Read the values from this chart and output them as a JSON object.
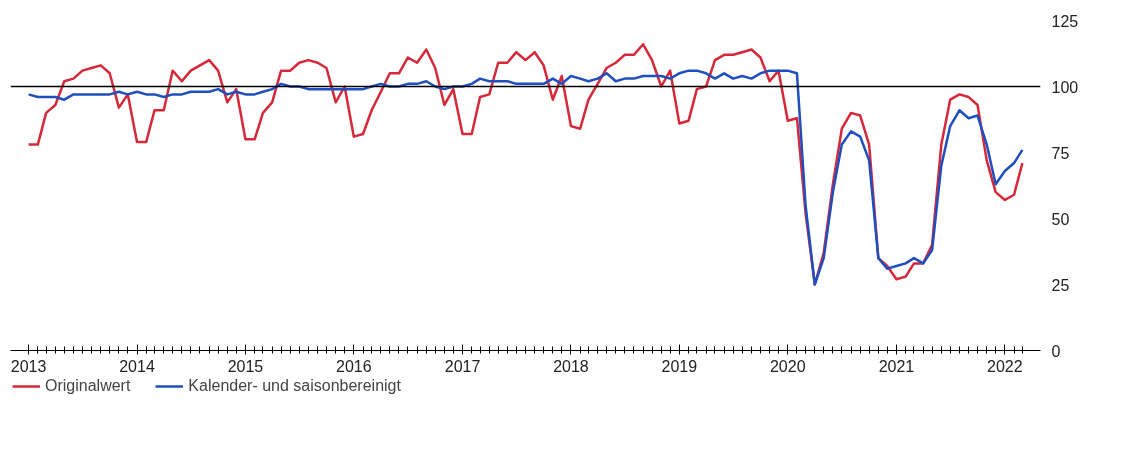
{
  "chart_data": {
    "type": "line",
    "x": [
      "2013-01",
      "2013-02",
      "2013-03",
      "2013-04",
      "2013-05",
      "2013-06",
      "2013-07",
      "2013-08",
      "2013-09",
      "2013-10",
      "2013-11",
      "2013-12",
      "2014-01",
      "2014-02",
      "2014-03",
      "2014-04",
      "2014-05",
      "2014-06",
      "2014-07",
      "2014-08",
      "2014-09",
      "2014-10",
      "2014-11",
      "2014-12",
      "2015-01",
      "2015-02",
      "2015-03",
      "2015-04",
      "2015-05",
      "2015-06",
      "2015-07",
      "2015-08",
      "2015-09",
      "2015-10",
      "2015-11",
      "2015-12",
      "2016-01",
      "2016-02",
      "2016-03",
      "2016-04",
      "2016-05",
      "2016-06",
      "2016-07",
      "2016-08",
      "2016-09",
      "2016-10",
      "2016-11",
      "2016-12",
      "2017-01",
      "2017-02",
      "2017-03",
      "2017-04",
      "2017-05",
      "2017-06",
      "2017-07",
      "2017-08",
      "2017-09",
      "2017-10",
      "2017-11",
      "2017-12",
      "2018-01",
      "2018-02",
      "2018-03",
      "2018-04",
      "2018-05",
      "2018-06",
      "2018-07",
      "2018-08",
      "2018-09",
      "2018-10",
      "2018-11",
      "2018-12",
      "2019-01",
      "2019-02",
      "2019-03",
      "2019-04",
      "2019-05",
      "2019-06",
      "2019-07",
      "2019-08",
      "2019-09",
      "2019-10",
      "2019-11",
      "2019-12",
      "2020-01",
      "2020-02",
      "2020-03",
      "2020-04",
      "2020-05",
      "2020-06",
      "2020-07",
      "2020-08",
      "2020-09",
      "2020-10",
      "2020-11",
      "2020-12",
      "2021-01",
      "2021-02",
      "2021-03",
      "2021-04",
      "2021-05",
      "2021-06",
      "2021-07",
      "2021-08",
      "2021-09",
      "2021-10",
      "2021-11",
      "2021-12",
      "2022-01",
      "2022-02",
      "2022-03"
    ],
    "series": [
      {
        "name": "Originalwert",
        "color": "#d62839",
        "values": [
          78,
          78,
          90,
          93,
          102,
          103,
          106,
          107,
          108,
          105,
          92,
          97,
          79,
          79,
          91,
          91,
          106,
          102,
          106,
          108,
          110,
          106,
          94,
          99,
          80,
          80,
          90,
          94,
          106,
          106,
          109,
          110,
          109,
          107,
          94,
          100,
          81,
          82,
          91,
          98,
          105,
          105,
          111,
          109,
          114,
          107,
          93,
          99,
          82,
          82,
          96,
          97,
          109,
          109,
          113,
          110,
          113,
          108,
          95,
          104,
          85,
          84,
          95,
          101,
          107,
          109,
          112,
          112,
          116,
          110,
          100,
          106,
          86,
          87,
          99,
          100,
          110,
          112,
          112,
          113,
          114,
          111,
          102,
          106,
          87,
          88,
          52,
          25,
          37,
          63,
          84,
          90,
          89,
          78,
          35,
          32,
          27,
          28,
          33,
          33,
          40,
          78,
          95,
          97,
          96,
          93,
          72,
          60,
          57,
          59,
          71
        ]
      },
      {
        "name": "Kalender- und saisonbereinigt",
        "color": "#1f4fbf",
        "values": [
          97,
          96,
          96,
          96,
          95,
          97,
          97,
          97,
          97,
          97,
          98,
          97,
          98,
          97,
          97,
          96,
          97,
          97,
          98,
          98,
          98,
          99,
          97,
          98,
          97,
          97,
          98,
          99,
          101,
          100,
          100,
          99,
          99,
          99,
          99,
          99,
          99,
          99,
          100,
          101,
          100,
          100,
          101,
          101,
          102,
          100,
          99,
          100,
          100,
          101,
          103,
          102,
          102,
          102,
          101,
          101,
          101,
          101,
          103,
          101,
          104,
          103,
          102,
          103,
          105,
          102,
          103,
          103,
          104,
          104,
          104,
          103,
          105,
          106,
          106,
          105,
          103,
          105,
          103,
          104,
          103,
          105,
          106,
          106,
          106,
          105,
          55,
          25,
          35,
          60,
          78,
          83,
          81,
          72,
          35,
          31,
          32,
          33,
          35,
          33,
          38,
          70,
          85,
          91,
          88,
          89,
          78,
          63,
          68,
          71,
          76
        ]
      }
    ],
    "xlim": [
      "2012-11",
      "2022-05"
    ],
    "xticks": [
      "2013",
      "2014",
      "2015",
      "2016",
      "2017",
      "2018",
      "2019",
      "2020",
      "2021",
      "2022"
    ],
    "ylim": [
      0,
      125
    ],
    "yticks": [
      0,
      25,
      50,
      75,
      100,
      125
    ],
    "ref_lines": [
      {
        "axis": "y",
        "value": 100,
        "color": "#000000"
      }
    ],
    "grid": false,
    "legend": "bottom left",
    "line_style": "solid"
  }
}
